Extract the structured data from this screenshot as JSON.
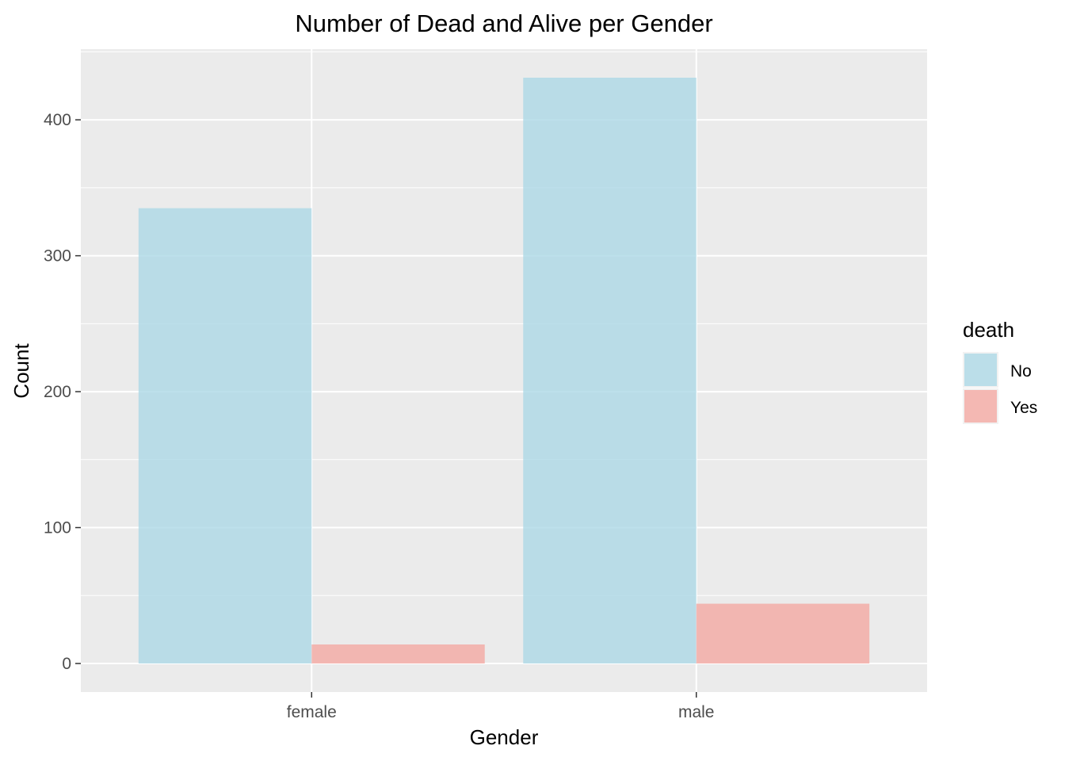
{
  "chart_data": {
    "type": "bar",
    "title": "Number of Dead and Alive per Gender",
    "xlabel": "Gender",
    "ylabel": "Count",
    "categories": [
      "female",
      "male"
    ],
    "series": [
      {
        "name": "No",
        "values": [
          335,
          431
        ],
        "color": "#ADD8E6"
      },
      {
        "name": "Yes",
        "values": [
          14,
          44
        ],
        "color": "#F4A9A2"
      }
    ],
    "ylim": [
      -21,
      452
    ],
    "yticks": [
      0,
      100,
      200,
      300,
      400
    ],
    "ytick_labels": [
      "0",
      "100",
      "200",
      "300",
      "400"
    ],
    "grid": true,
    "legend": {
      "title": "death",
      "position": "right",
      "entries": [
        "No",
        "Yes"
      ]
    },
    "panel_background": "#EBEBEB",
    "grid_color": "#FFFFFF"
  }
}
